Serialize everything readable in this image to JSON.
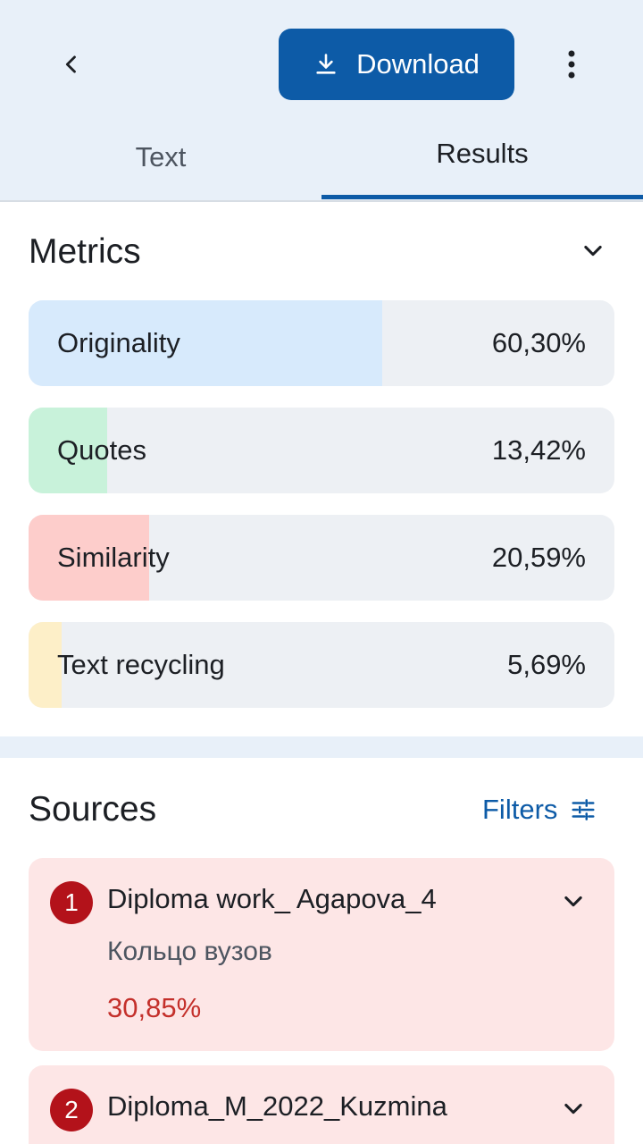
{
  "header": {
    "download_label": "Download",
    "icons": {
      "back": "chevron-left-icon",
      "download": "download-icon",
      "more": "more-vertical-icon"
    }
  },
  "tabs": [
    {
      "label": "Text",
      "active": false
    },
    {
      "label": "Results",
      "active": true
    }
  ],
  "metrics": {
    "title": "Metrics",
    "items": [
      {
        "label": "Originality",
        "value": "60,30%",
        "fraction": 0.603,
        "color": "#d7eafc"
      },
      {
        "label": "Quotes",
        "value": "13,42%",
        "fraction": 0.1342,
        "color": "#c8f2da"
      },
      {
        "label": "Similarity",
        "value": "20,59%",
        "fraction": 0.2059,
        "color": "#fdcdcb"
      },
      {
        "label": "Text recycling",
        "value": "5,69%",
        "fraction": 0.0569,
        "color": "#fdefc8"
      }
    ]
  },
  "sources": {
    "title": "Sources",
    "filters_label": "Filters",
    "items": [
      {
        "number": "1",
        "title": "Diploma work_ Agapova_4",
        "subtitle": "Кольцо вузов",
        "percent": "30,85%"
      },
      {
        "number": "2",
        "title": "Diploma_M_2022_Kuzmina"
      }
    ]
  },
  "colors": {
    "accent": "#0d5ba7",
    "header_bg": "#e8f0f9",
    "source_bg": "#fde6e6",
    "badge": "#b3121a",
    "percent_text": "#c4302b"
  }
}
